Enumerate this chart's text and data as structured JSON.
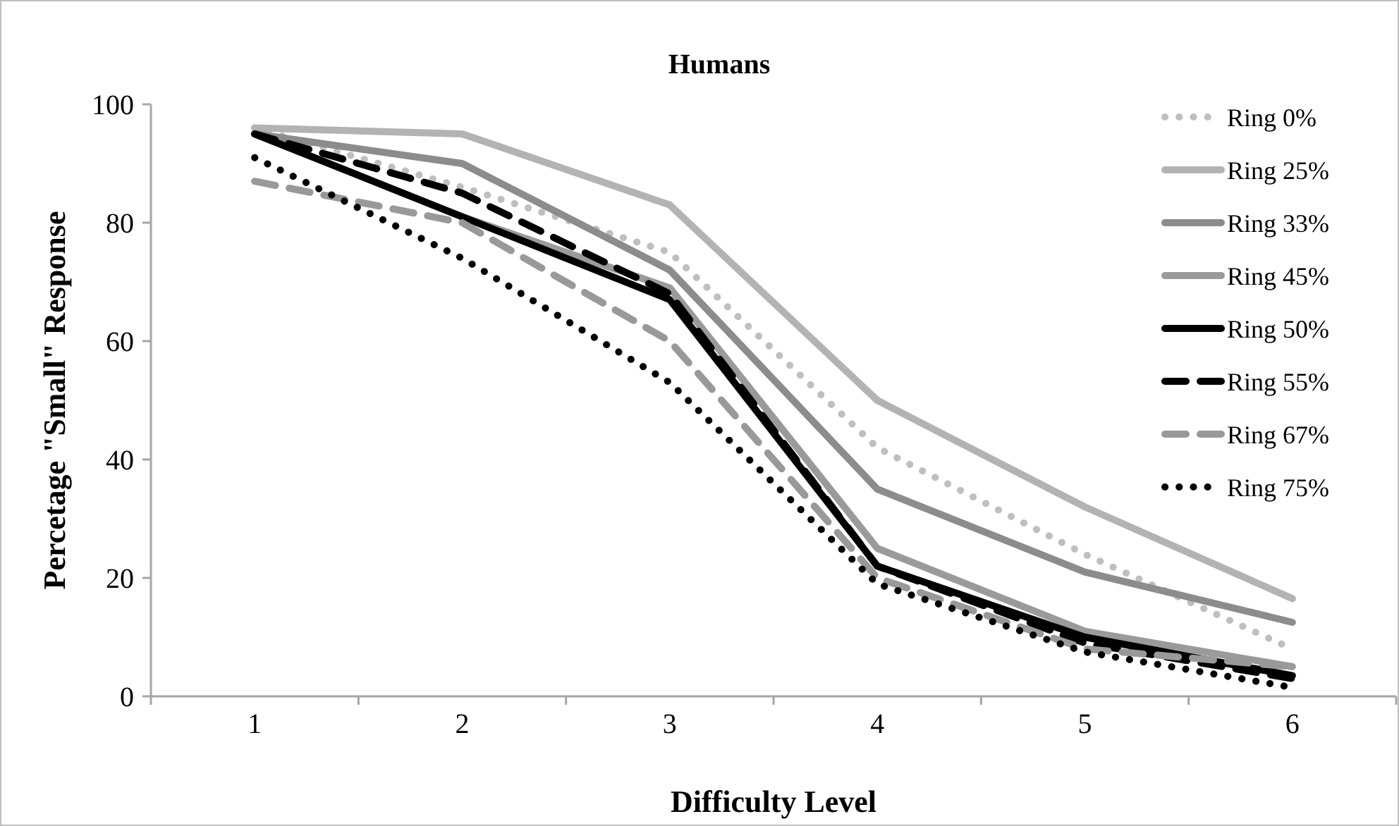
{
  "chart_data": {
    "type": "line",
    "title": "Humans",
    "xlabel": "Difficulty Level",
    "ylabel": "Percetage \"Small\" Response",
    "categories": [
      "1",
      "2",
      "3",
      "4",
      "5",
      "6"
    ],
    "ylim": [
      0,
      100
    ],
    "yticks": [
      0,
      20,
      40,
      60,
      80,
      100
    ],
    "grid": false,
    "legend": "top right",
    "marker": "none",
    "series": [
      {
        "name": "Ring 0%",
        "color": "#bfbfbf",
        "line_style": "dotted",
        "values": [
          96,
          86,
          75,
          42,
          24,
          8
        ]
      },
      {
        "name": "Ring 25%",
        "color": "#b3b3b3",
        "line_style": "solid",
        "values": [
          96,
          95,
          83,
          50,
          32,
          16.5
        ]
      },
      {
        "name": "Ring 33%",
        "color": "#8c8c8c",
        "line_style": "solid",
        "values": [
          95,
          90,
          72,
          35,
          21,
          12.5
        ]
      },
      {
        "name": "Ring 45%",
        "color": "#9a9a9a",
        "line_style": "solid",
        "values": [
          95,
          81,
          69,
          25,
          11,
          5
        ]
      },
      {
        "name": "Ring 50%",
        "color": "#000000",
        "line_style": "solid",
        "values": [
          95,
          81,
          67,
          22,
          10,
          3.5
        ]
      },
      {
        "name": "Ring 55%",
        "color": "#000000",
        "line_style": "dashed",
        "values": [
          95,
          85,
          68,
          22,
          9,
          3
        ]
      },
      {
        "name": "Ring 67%",
        "color": "#999999",
        "line_style": "dashed",
        "values": [
          87,
          80,
          60,
          20,
          8,
          5
        ]
      },
      {
        "name": "Ring 75%",
        "color": "#000000",
        "line_style": "dotted",
        "values": [
          91,
          74,
          53,
          19,
          7.5,
          1.5
        ]
      }
    ]
  }
}
